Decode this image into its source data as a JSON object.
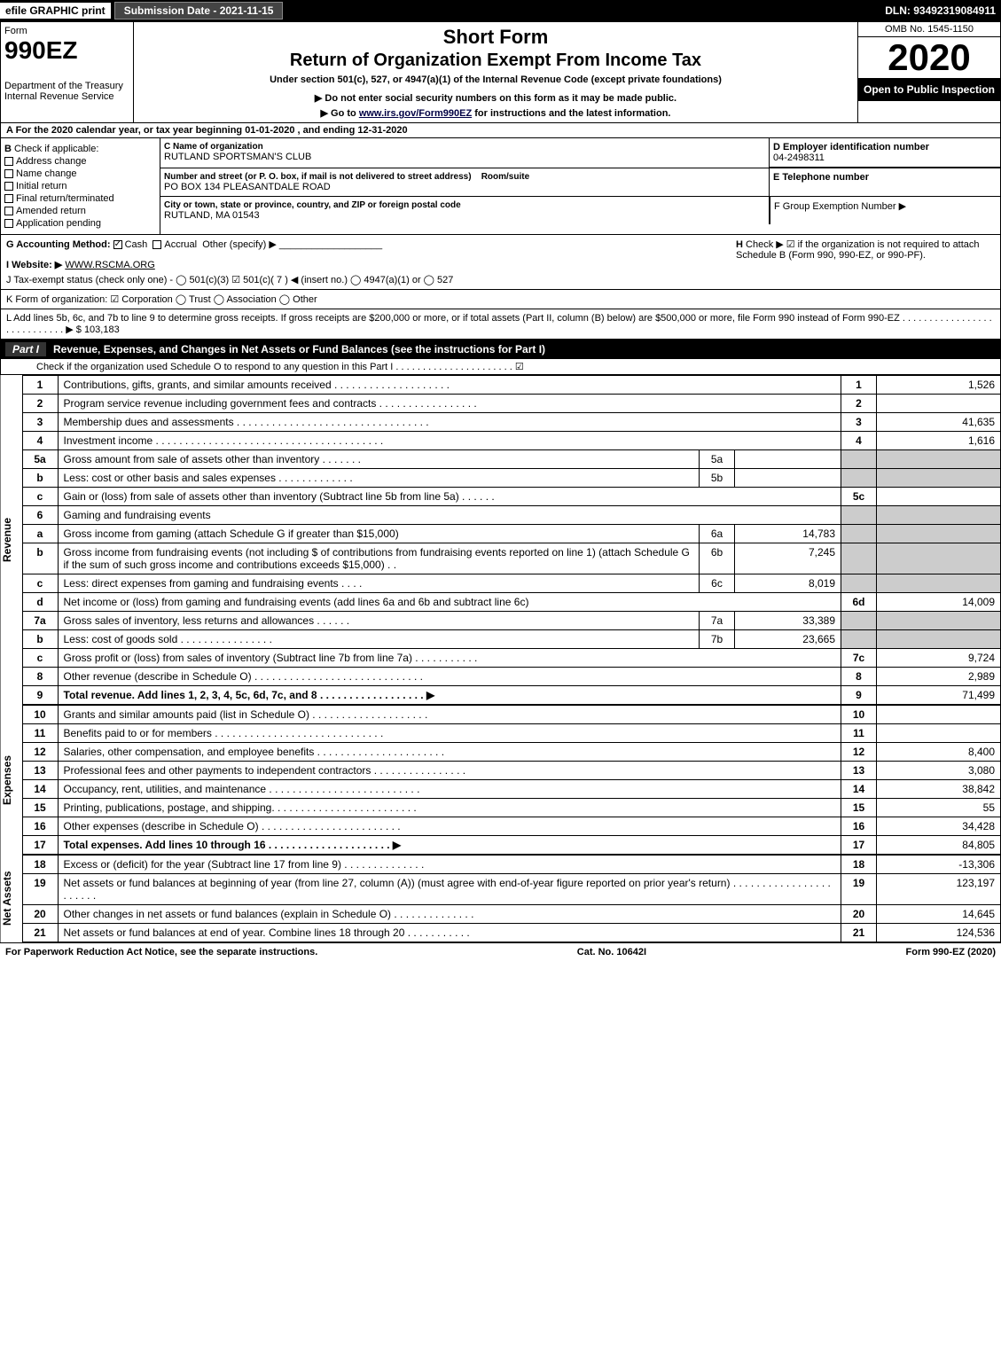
{
  "topbar": {
    "efile": "efile GRAPHIC print",
    "submission": "Submission Date - 2021-11-15",
    "dln": "DLN: 93492319084911"
  },
  "header": {
    "form_label": "Form",
    "form_no": "990EZ",
    "dept": "Department of the Treasury Internal Revenue Service",
    "title1": "Short Form",
    "title2": "Return of Organization Exempt From Income Tax",
    "subtitle": "Under section 501(c), 527, or 4947(a)(1) of the Internal Revenue Code (except private foundations)",
    "note1": "▶ Do not enter social security numbers on this form as it may be made public.",
    "note2_pre": "▶ Go to ",
    "note2_link": "www.irs.gov/Form990EZ",
    "note2_post": " for instructions and the latest information.",
    "omb": "OMB No. 1545-1150",
    "year": "2020",
    "inspect": "Open to Public Inspection"
  },
  "row_a": "A For the 2020 calendar year, or tax year beginning 01-01-2020 , and ending 12-31-2020",
  "section_b": {
    "label": "B",
    "check_label": "Check if applicable:",
    "options": [
      "Address change",
      "Name change",
      "Initial return",
      "Final return/terminated",
      "Amended return",
      "Application pending"
    ]
  },
  "section_c": {
    "name_label": "C Name of organization",
    "name": "RUTLAND SPORTSMAN'S CLUB",
    "street_label": "Number and street (or P. O. box, if mail is not delivered to street address)",
    "room_label": "Room/suite",
    "street": "PO BOX 134 PLEASANTDALE ROAD",
    "city_label": "City or town, state or province, country, and ZIP or foreign postal code",
    "city": "RUTLAND, MA  01543"
  },
  "section_d": {
    "label": "D Employer identification number",
    "value": "04-2498311"
  },
  "section_e": {
    "label": "E Telephone number",
    "value": ""
  },
  "section_f": {
    "label": "F Group Exemption Number ▶",
    "value": ""
  },
  "row_g": {
    "label": "G Accounting Method:",
    "cash": "Cash",
    "accrual": "Accrual",
    "other": "Other (specify) ▶",
    "h_label": "H",
    "h_text": "Check ▶ ☑ if the organization is not required to attach Schedule B (Form 990, 990-EZ, or 990-PF)."
  },
  "row_i": {
    "label": "I Website: ▶",
    "value": "WWW.RSCMA.ORG"
  },
  "row_j": "J Tax-exempt status (check only one) - ◯ 501(c)(3)  ☑ 501(c)( 7 ) ◀ (insert no.)  ◯ 4947(a)(1) or  ◯ 527",
  "row_k": "K Form of organization:  ☑ Corporation  ◯ Trust  ◯ Association  ◯ Other",
  "row_l": {
    "text": "L Add lines 5b, 6c, and 7b to line 9 to determine gross receipts. If gross receipts are $200,000 or more, or if total assets (Part II, column (B) below) are $500,000 or more, file Form 990 instead of Form 990-EZ . . . . . . . . . . . . . . . . . . . . . . . . . . . . ▶",
    "value": "$ 103,183"
  },
  "part1_header": {
    "tag": "Part I",
    "title": "Revenue, Expenses, and Changes in Net Assets or Fund Balances (see the instructions for Part I)",
    "sub": "Check if the organization used Schedule O to respond to any question in this Part I . . . . . . . . . . . . . . . . . . . . . . ☑"
  },
  "sections": {
    "revenue_label": "Revenue",
    "expenses_label": "Expenses",
    "netassets_label": "Net Assets"
  },
  "lines": [
    {
      "n": "1",
      "d": "Contributions, gifts, grants, and similar amounts received . . . . . . . . . . . . . . . . . . . .",
      "ln": "1",
      "v": "1,526"
    },
    {
      "n": "2",
      "d": "Program service revenue including government fees and contracts . . . . . . . . . . . . . . . . .",
      "ln": "2",
      "v": ""
    },
    {
      "n": "3",
      "d": "Membership dues and assessments . . . . . . . . . . . . . . . . . . . . . . . . . . . . . . . . .",
      "ln": "3",
      "v": "41,635"
    },
    {
      "n": "4",
      "d": "Investment income . . . . . . . . . . . . . . . . . . . . . . . . . . . . . . . . . . . . . . .",
      "ln": "4",
      "v": "1,616"
    },
    {
      "n": "5a",
      "d": "Gross amount from sale of assets other than inventory . . . . . . .",
      "sn": "5a",
      "sv": "",
      "grey": true
    },
    {
      "n": "b",
      "d": "Less: cost or other basis and sales expenses . . . . . . . . . . . . .",
      "sn": "5b",
      "sv": "",
      "grey": true
    },
    {
      "n": "c",
      "d": "Gain or (loss) from sale of assets other than inventory (Subtract line 5b from line 5a) . . . . . .",
      "ln": "5c",
      "v": ""
    },
    {
      "n": "6",
      "d": "Gaming and fundraising events",
      "grey_full": true
    },
    {
      "n": "a",
      "d": "Gross income from gaming (attach Schedule G if greater than $15,000)",
      "sn": "6a",
      "sv": "14,783",
      "grey": true
    },
    {
      "n": "b",
      "d": "Gross income from fundraising events (not including $                  of contributions from fundraising events reported on line 1) (attach Schedule G if the sum of such gross income and contributions exceeds $15,000)     . .",
      "sn": "6b",
      "sv": "7,245",
      "grey": true
    },
    {
      "n": "c",
      "d": "Less: direct expenses from gaming and fundraising events      . . . .",
      "sn": "6c",
      "sv": "8,019",
      "grey": true
    },
    {
      "n": "d",
      "d": "Net income or (loss) from gaming and fundraising events (add lines 6a and 6b and subtract line 6c)",
      "ln": "6d",
      "v": "14,009"
    },
    {
      "n": "7a",
      "d": "Gross sales of inventory, less returns and allowances . . . . . .",
      "sn": "7a",
      "sv": "33,389",
      "grey": true
    },
    {
      "n": "b",
      "d": "Less: cost of goods sold      . . . . . . . . . . . . . . . .",
      "sn": "7b",
      "sv": "23,665",
      "grey": true
    },
    {
      "n": "c",
      "d": "Gross profit or (loss) from sales of inventory (Subtract line 7b from line 7a) . . . . . . . . . . .",
      "ln": "7c",
      "v": "9,724"
    },
    {
      "n": "8",
      "d": "Other revenue (describe in Schedule O) . . . . . . . . . . . . . . . . . . . . . . . . . . . . .",
      "ln": "8",
      "v": "2,989"
    },
    {
      "n": "9",
      "d": "Total revenue. Add lines 1, 2, 3, 4, 5c, 6d, 7c, and 8  . . . . . . . . . . . . . . . . . .   ▶",
      "ln": "9",
      "v": "71,499",
      "bold": true
    }
  ],
  "exp_lines": [
    {
      "n": "10",
      "d": "Grants and similar amounts paid (list in Schedule O) . . . . . . . . . . . . . . . . . . . .",
      "ln": "10",
      "v": ""
    },
    {
      "n": "11",
      "d": "Benefits paid to or for members    . . . . . . . . . . . . . . . . . . . . . . . . . . . . .",
      "ln": "11",
      "v": ""
    },
    {
      "n": "12",
      "d": "Salaries, other compensation, and employee benefits . . . . . . . . . . . . . . . . . . . . . .",
      "ln": "12",
      "v": "8,400"
    },
    {
      "n": "13",
      "d": "Professional fees and other payments to independent contractors . . . . . . . . . . . . . . . .",
      "ln": "13",
      "v": "3,080"
    },
    {
      "n": "14",
      "d": "Occupancy, rent, utilities, and maintenance . . . . . . . . . . . . . . . . . . . . . . . . . .",
      "ln": "14",
      "v": "38,842"
    },
    {
      "n": "15",
      "d": "Printing, publications, postage, and shipping. . . . . . . . . . . . . . . . . . . . . . . . .",
      "ln": "15",
      "v": "55"
    },
    {
      "n": "16",
      "d": "Other expenses (describe in Schedule O)    . . . . . . . . . . . . . . . . . . . . . . . .",
      "ln": "16",
      "v": "34,428"
    },
    {
      "n": "17",
      "d": "Total expenses. Add lines 10 through 16    . . . . . . . . . . . . . . . . . . . . .   ▶",
      "ln": "17",
      "v": "84,805",
      "bold": true
    }
  ],
  "na_lines": [
    {
      "n": "18",
      "d": "Excess or (deficit) for the year (Subtract line 17 from line 9)      . . . . . . . . . . . . . .",
      "ln": "18",
      "v": "-13,306"
    },
    {
      "n": "19",
      "d": "Net assets or fund balances at beginning of year (from line 27, column (A)) (must agree with end-of-year figure reported on prior year's return) . . . . . . . . . . . . . . . . . . . . . . .",
      "ln": "19",
      "v": "123,197"
    },
    {
      "n": "20",
      "d": "Other changes in net assets or fund balances (explain in Schedule O) . . . . . . . . . . . . . .",
      "ln": "20",
      "v": "14,645"
    },
    {
      "n": "21",
      "d": "Net assets or fund balances at end of year. Combine lines 18 through 20 . . . . . . . . . . .",
      "ln": "21",
      "v": "124,536"
    }
  ],
  "footer": {
    "left": "For Paperwork Reduction Act Notice, see the separate instructions.",
    "mid": "Cat. No. 10642I",
    "right": "Form 990-EZ (2020)"
  }
}
